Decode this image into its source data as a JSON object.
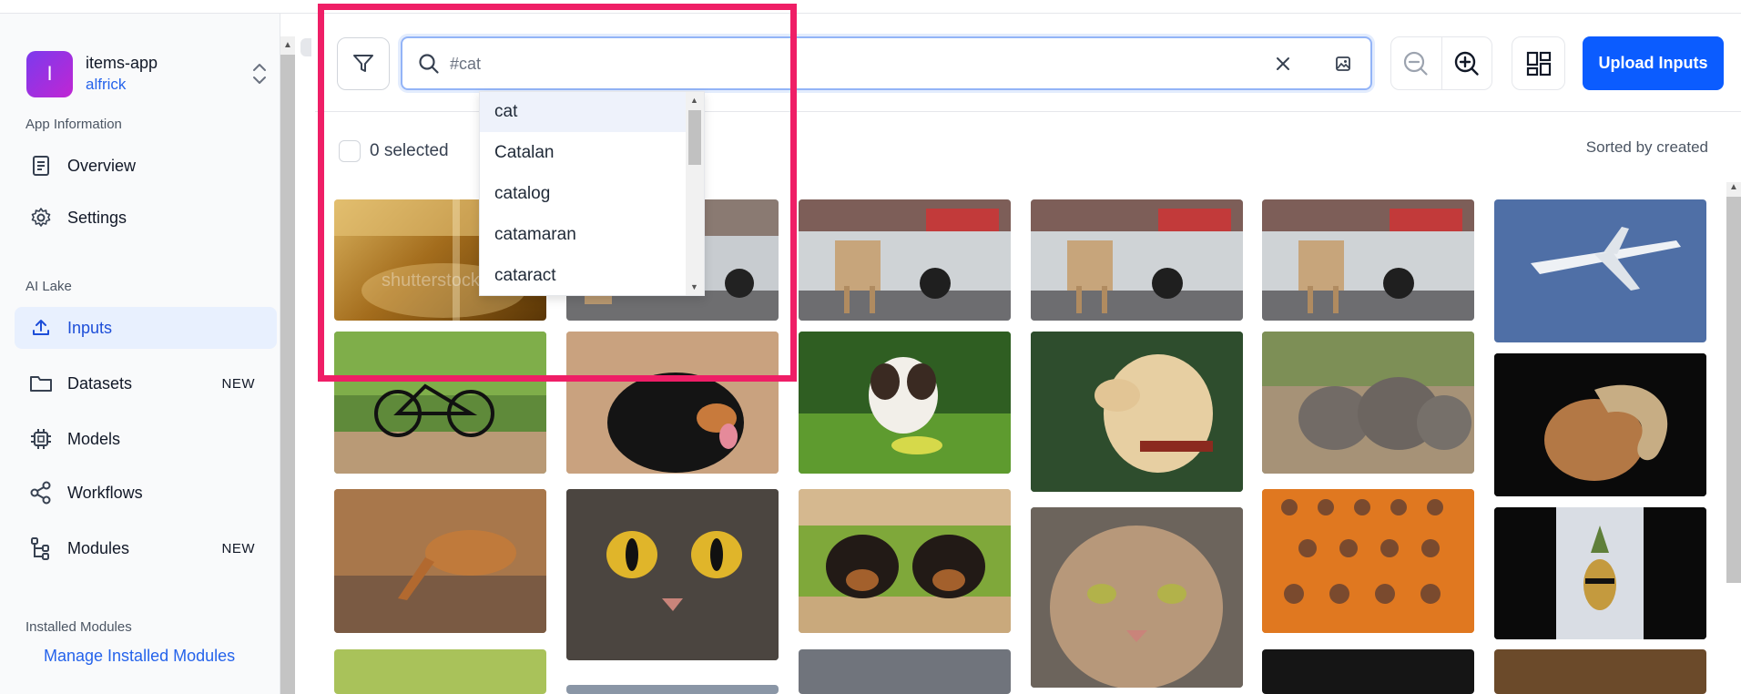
{
  "sidebar": {
    "app": {
      "initial": "I",
      "name": "items-app",
      "user": "alfrick"
    },
    "sections": {
      "app_information": "App Information",
      "ai_lake": "AI Lake",
      "installed_modules": "Installed Modules"
    },
    "items": [
      {
        "label": "Overview",
        "icon": "document-icon"
      },
      {
        "label": "Settings",
        "icon": "gear-icon"
      },
      {
        "label": "Inputs",
        "icon": "upload-icon",
        "active": true
      },
      {
        "label": "Datasets",
        "icon": "folder-icon",
        "badge": "NEW"
      },
      {
        "label": "Models",
        "icon": "chip-icon"
      },
      {
        "label": "Workflows",
        "icon": "share-icon"
      },
      {
        "label": "Modules",
        "icon": "modules-icon",
        "badge": "NEW"
      }
    ],
    "manage_link": "Manage Installed Modules"
  },
  "toolbar": {
    "search_value": "",
    "search_placeholder": "#cat",
    "upload_label": "Upload Inputs"
  },
  "selection": {
    "label": "0 selected"
  },
  "sort": {
    "label": "Sorted by created"
  },
  "dropdown": {
    "options": [
      "cat",
      "Catalan",
      "catalog",
      "catamaran",
      "cataract"
    ],
    "highlighted": "cat"
  },
  "gallery": {
    "watermark": "shutterstock",
    "items": [
      {
        "subject": "golden liquid glass"
      },
      {
        "subject": "dog by silver car"
      },
      {
        "subject": "dog by silver car"
      },
      {
        "subject": "dog by silver car"
      },
      {
        "subject": "dog by silver car"
      },
      {
        "subject": "airplane in blue sky"
      },
      {
        "subject": "bicycle on forest path"
      },
      {
        "subject": "bernese dog by wood wall"
      },
      {
        "subject": "puppy lying on grass"
      },
      {
        "subject": "labrador in forest"
      },
      {
        "subject": "elephant herd"
      },
      {
        "subject": "ram with curled horns"
      },
      {
        "subject": "impala drinking water"
      },
      {
        "subject": "tabby cat face close-up"
      },
      {
        "subject": "two puppies over fence"
      },
      {
        "subject": "tabby cat portrait"
      },
      {
        "subject": "young monks in orange robes"
      },
      {
        "subject": "pineapple with sunglasses"
      }
    ]
  },
  "colors": {
    "accent": "#0b5cff",
    "highlight_frame": "#ef1e66",
    "link": "#2563eb"
  }
}
